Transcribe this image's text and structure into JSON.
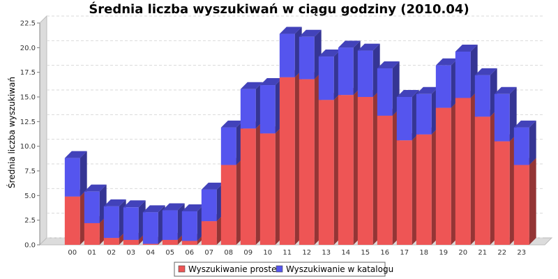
{
  "chart_data": {
    "type": "bar",
    "stacked": true,
    "style": "3d",
    "title": "Średnia liczba wyszukiwań w ciągu godziny (2010.04)",
    "xlabel": "",
    "ylabel": "Średnia liczba wyszukiwań",
    "ylim": [
      0,
      22.5
    ],
    "yticks": [
      "0.0",
      "2.5",
      "5.0",
      "7.5",
      "10.0",
      "12.5",
      "15.0",
      "17.5",
      "20.0",
      "22.5"
    ],
    "grid": true,
    "legend_position": "bottom",
    "categories": [
      "00",
      "01",
      "02",
      "03",
      "04",
      "05",
      "06",
      "07",
      "08",
      "09",
      "10",
      "11",
      "12",
      "13",
      "14",
      "15",
      "16",
      "17",
      "18",
      "19",
      "20",
      "21",
      "22",
      "23"
    ],
    "series": [
      {
        "name": "Wyszukiwanie proste",
        "color": "#ee5555",
        "values": [
          4.9,
          2.2,
          0.7,
          0.5,
          0.1,
          0.5,
          0.4,
          2.4,
          8.1,
          11.8,
          11.3,
          17.0,
          16.8,
          14.7,
          15.2,
          15.0,
          13.1,
          10.6,
          11.2,
          13.9,
          14.9,
          13.0,
          10.5,
          8.1
        ]
      },
      {
        "name": "Wyszukiwanie w katalogu",
        "color": "#5555ee",
        "values": [
          3.9,
          3.2,
          3.2,
          3.3,
          3.2,
          3.0,
          3.0,
          3.2,
          3.8,
          4.0,
          4.9,
          4.4,
          4.3,
          4.4,
          4.8,
          4.7,
          4.8,
          4.4,
          4.1,
          4.3,
          4.7,
          4.2,
          4.8,
          3.8
        ]
      }
    ]
  }
}
